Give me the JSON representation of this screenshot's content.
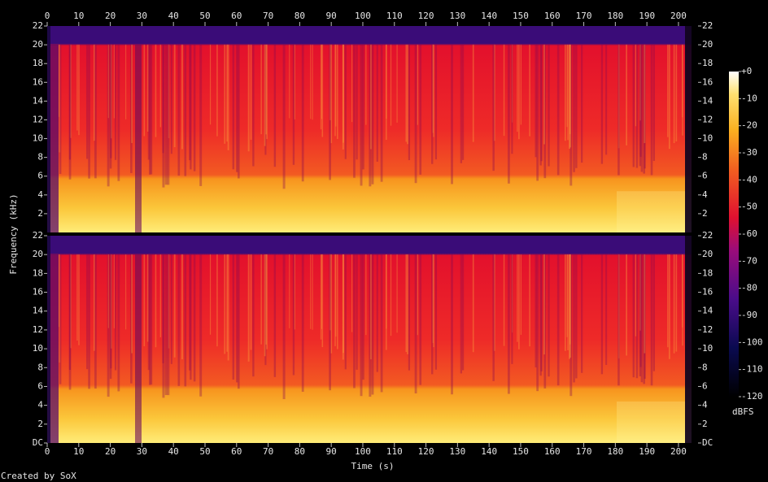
{
  "chart_data": {
    "type": "spectrogram",
    "xlabel": "Time (s)",
    "ylabel": "Frequency (kHz)",
    "credit": "Created by SoX",
    "xlim": [
      0,
      206.2
    ],
    "xticks": [
      0,
      10,
      20,
      30,
      40,
      50,
      60,
      70,
      80,
      90,
      100,
      110,
      120,
      130,
      140,
      150,
      160,
      170,
      180,
      190,
      200
    ],
    "panels": [
      {
        "ylim": [
          0,
          22
        ],
        "yticks": [
          2,
          4,
          6,
          8,
          10,
          12,
          14,
          16,
          18,
          20,
          22
        ]
      },
      {
        "ylim": [
          0,
          22
        ],
        "yticks": [
          {
            "value": 0,
            "label": "DC"
          },
          2,
          4,
          6,
          8,
          10,
          12,
          14,
          16,
          18,
          20,
          22
        ]
      }
    ],
    "colorbar": {
      "label": "dBFS",
      "lim": [
        -120,
        0
      ],
      "ticks": [
        {
          "value": 0,
          "label": "+0"
        },
        -10,
        -20,
        -30,
        -40,
        -50,
        -60,
        -70,
        -80,
        -90,
        -100,
        -110,
        -120
      ]
    }
  }
}
